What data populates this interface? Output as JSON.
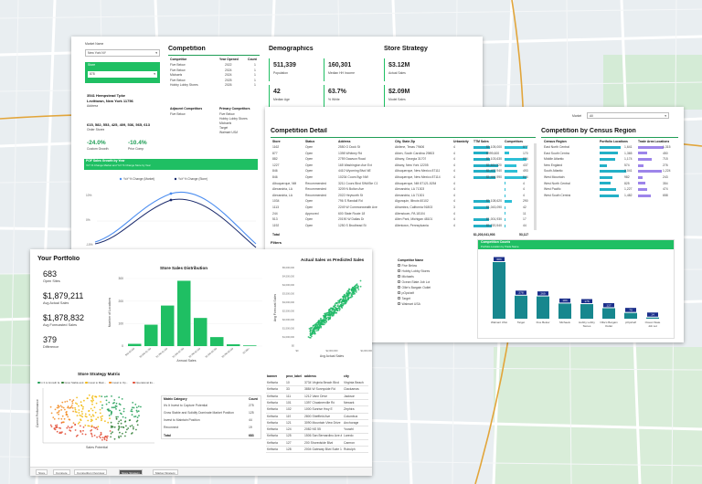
{
  "map_colors": {
    "bg": "#e9eef1",
    "road": "#ffffff",
    "green": "#cfe8d2",
    "water": "#c9dcef"
  },
  "panel1": {
    "market_label": "Market Name",
    "market_value": "New York NY",
    "store_label": "Store",
    "store_value": "878",
    "address_line1": "3541 Hempstead Tpke",
    "address_line2": "Levittown, New York 11756",
    "address_caption": "Address",
    "orders_value": "615, 582, 553, 425, 409, 536, 565, 613",
    "orders_caption": "Order Stores",
    "kpi_growth_value": "-24.0%",
    "kpi_growth_caption": "Custom Growth",
    "kpi_prior_value": "-10.4%",
    "kpi_prior_caption": "Prior Comp",
    "competition_title": "Competition",
    "comp_headers": [
      "Competitor",
      "Year Opened",
      "Count"
    ],
    "comp_rows": [
      [
        "Five Below",
        "2022",
        "1"
      ],
      [
        "Five Below",
        "2024",
        "1"
      ],
      [
        "Michaels",
        "2024",
        "1"
      ],
      [
        "Five Below",
        "2025",
        "1"
      ],
      [
        "Hobby Lobby Stores",
        "2026",
        "1"
      ]
    ],
    "adjacent_title": "Adjacent Competitors",
    "adjacent_items": [
      "Five Below"
    ],
    "primary_title": "Primary Competitors",
    "primary_items": [
      "Five Below",
      "Hobby Lobby Stores",
      "Michaels",
      "Target",
      "Walmart USA"
    ],
    "demographics_title": "Demographics",
    "demo_tiles": [
      {
        "value": "511,339",
        "caption": "Population"
      },
      {
        "value": "160,301",
        "caption": "Median HH Income"
      },
      {
        "value": "42",
        "caption": "Median Age"
      },
      {
        "value": "63.7%",
        "caption": "% White"
      }
    ],
    "strategy_title": "Store Strategy",
    "strategy_tiles": [
      {
        "value": "$3.12M",
        "caption": "Actual Sales"
      },
      {
        "value": "$2.09M",
        "caption": "Model Sales"
      }
    ],
    "growth_title": "POF Sales Growth by Year",
    "growth_subtitle": "YoY % Change Market and YoY % Change Store by Year",
    "growth_legend": [
      "YoY % Change (Market)",
      "YoY % Change (Store)"
    ],
    "growth_ylabels": [
      "10%",
      "0%",
      "-10%"
    ]
  },
  "panel2": {
    "detail_title": "Competition Detail",
    "detail_headers": [
      "Store",
      "Status",
      "Address",
      "City, State Zip",
      "Urbanicity",
      "TTM Sales",
      "Competitors"
    ],
    "detail_rows": [
      [
        "1162",
        "Open",
        "2550 O Dock St",
        "Abilene, Texas 79606",
        "4",
        "$1,105,000",
        "877"
      ],
      [
        "877",
        "Open",
        "1398 Whitney Rd",
        "Aiken, South Carolina 29803",
        "4",
        "$999,600",
        "170"
      ],
      [
        "882",
        "Open",
        "2759 Dawson Road",
        "Albany, Georgia 31707",
        "4",
        "$1,103,630",
        "834"
      ],
      [
        "1227",
        "Open",
        "165 Washington Ave Ext",
        "Albany, New York 12205",
        "4",
        "$1,611,320",
        "437"
      ],
      [
        "846",
        "Open",
        "4410 Wyoming Blvd NE",
        "Albuquerque, New Mexico 87111",
        "4",
        "$1,472,940",
        "493"
      ],
      [
        "846",
        "Open",
        "10234 Coors Byp NW",
        "Albuquerque, New Mexico 87114",
        "4",
        "$1,444,990",
        "844"
      ],
      [
        "Albuquerque, NM",
        "Recommended",
        "3211 Coors Blvd SW#Ste C1",
        "Albuquerque, NM 87121-5254",
        "4",
        "",
        "4"
      ],
      [
        "Alexandria, LA",
        "Recommended",
        "3209 N Bolton Ave",
        "Alexandria, LA 71303",
        "4",
        "",
        "4"
      ],
      [
        "Alexandria, LA",
        "Recommended",
        "2022 Heyworth St",
        "Alexandria, LA 71301",
        "4",
        "",
        "4"
      ],
      [
        "1034",
        "Open",
        "796 S Randall Rd",
        "Algonquin, Illinois 60102",
        "4",
        "$1,108,620",
        "290"
      ],
      [
        "1113",
        "Open",
        "2249 W Commonwealth Ave",
        "Alhambra, California 91803",
        "3",
        "$1,043,090",
        "42"
      ],
      [
        "244",
        "Approved",
        "600 State Route 18",
        "Allenstown, PA 18104",
        "4",
        "",
        "11"
      ],
      [
        "513",
        "Open",
        "20190 W Dallas Dr",
        "Allen Park, Michigan 48101",
        "4",
        "$1,001,930",
        "17"
      ],
      [
        "1192",
        "Open",
        "1250 S Brodhead St",
        "Allentown, Pennsylvania",
        "4",
        "$1,220,540",
        "44"
      ]
    ],
    "detail_total_label": "Total",
    "detail_total_value": "$1,203,041,903",
    "detail_total_count": "53,117",
    "market_label": "Market",
    "market_value": "All",
    "census_title": "Competition by Census Region",
    "census_headers": [
      "Census Region",
      "Portfolio Locations",
      "Trade Area Locations"
    ],
    "census_rows": [
      [
        "East North Central",
        "1,641",
        "1,315"
      ],
      [
        "East South Central",
        "1,365",
        "450"
      ],
      [
        "Middle Atlantic",
        "1,174",
        "715"
      ],
      [
        "New England",
        "574",
        "276"
      ],
      [
        "South Atlantic",
        "2,041",
        "1,224"
      ],
      [
        "West Mountain",
        "982",
        "243"
      ],
      [
        "West North Central",
        "825",
        "354"
      ],
      [
        "West Pacific",
        "1,227",
        "474"
      ],
      [
        "West South Central",
        "1,482",
        "658"
      ]
    ],
    "filters_label": "Filters",
    "filter_title": "Competitor Name",
    "filter_items": [
      "Five Below",
      "Hobby Lobby Stores",
      "Michaels",
      "Ocean State Job Lot",
      "Ollie's Bargain Outlet",
      "pOpshelf",
      "Target",
      "Walmart USA"
    ],
    "counts_title": "Competition Counts",
    "counts_subtitle": "Portfolio Location by Trade Name",
    "counts_categories": [
      "Walmart USA",
      "Target",
      "Five Below",
      "Michaels",
      "Hobby Lobby Stores",
      "Ollie's Bargain Outlet",
      "pOpshelf",
      "Ocean State Job Lot"
    ],
    "counts_values": [
      683,
      278,
      269,
      183,
      176,
      127,
      70,
      14
    ]
  },
  "panel3": {
    "portfolio_title": "Your Portfolio",
    "kpis": [
      {
        "value": "683",
        "caption": "Open Sites"
      },
      {
        "value": "$1,879,211",
        "caption": "Avg Actual Sales"
      },
      {
        "value": "$1,878,832",
        "caption": "Avg Forecasted Sales"
      },
      {
        "value": "379",
        "caption": "Difference"
      }
    ],
    "dist_title": "Store Sales Distribution",
    "dist_ylabel": "Number of Locations",
    "dist_xlabel": "Annual Sales",
    "dist_xticks": [
      "$0k-$0.5M",
      "$0.5M-$1.0M",
      "$1.0M-$1.5M",
      "$1.5M-$2.0M",
      "$2.0M-$2.5M",
      "$2.5M-$3.0M",
      "$3.0M-$3.5M",
      "$3.5M+"
    ],
    "dist_values": [
      10,
      95,
      180,
      290,
      125,
      40,
      8,
      3
    ],
    "dist_yticks": [
      "300",
      "200",
      "100",
      "0"
    ],
    "scatter_title": "Actual Sales vs Predicted Sales",
    "scatter_xlabel": "Avg Actual Sales",
    "scatter_ylabel": "Avg Forecast Sales",
    "scatter_yticks": [
      "$5,000,000",
      "$4,500,000",
      "$4,000,000",
      "$3,500,000",
      "$3,000,000",
      "$2,500,000",
      "$2,000,000",
      "$1,500,000",
      "$1,000,000",
      "$0"
    ],
    "scatter_xticks": [
      "$0",
      "$2,000,000",
      "$4,000,000"
    ],
    "matrix_title": "Store Strategy Matrix",
    "matrix_legend": [
      "In It to Growth fa...",
      "Grow Stable and...",
      "Invest to Main...",
      "Invest to Op...",
      "Operational Ex..."
    ],
    "matrix_xlabel": "Sales Potential",
    "matrix_ylabel": "Current Performance",
    "matrix_headers": [
      "Matrix Category",
      "Count"
    ],
    "matrix_rows": [
      [
        "It's It Invest to Capture Potential",
        "275"
      ],
      [
        "Grow Stable and Solidify Dominate Market Position",
        "125"
      ],
      [
        "Invest to Maintain Position",
        "44"
      ],
      [
        "Reconnect",
        "19"
      ]
    ],
    "matrix_total_label": "Total",
    "matrix_total_value": "683",
    "bottom_table_headers": [
      "banner",
      "prox_label",
      "address",
      "city"
    ],
    "bottom_table_rows": [
      [
        "Kellwria",
        "10",
        "3734 Virginia Beach Blvd",
        "Virginia Beach"
      ],
      [
        "Kellwria",
        "33",
        "3884 W Sunnyside Rd",
        "Clackamas"
      ],
      [
        "Kellwria",
        "111",
        "1212 Vann Drive",
        "Jackson"
      ],
      [
        "Kellwria",
        "101",
        "1397 Chastnerville Rd",
        "Newark"
      ],
      [
        "Kellwria",
        "102",
        "1000 Sunrise Hwy E",
        "Zephira"
      ],
      [
        "Kellwria",
        "119",
        "2800 Sheffield Ave",
        "Columbus"
      ],
      [
        "Kellwria",
        "121",
        "3090 Mountain View Drive",
        "Anchorage"
      ],
      [
        "Kellwria",
        "124",
        "2082 NS 55",
        "Youwhl"
      ],
      [
        "Kellwria",
        "125",
        "1506 San Bernardino Ave #12A",
        "Laredo"
      ],
      [
        "Kellwria",
        "127",
        "200 Shoredside Blvd",
        "Camron"
      ],
      [
        "Kellwria",
        "128",
        "2004 Gateway Blvd Suite 120",
        "Rubulph"
      ]
    ],
    "tabs": [
      "Store",
      "Compete",
      "Competition Overview",
      "Store Strategy",
      "Market Strategy"
    ],
    "active_tab": 3
  }
}
